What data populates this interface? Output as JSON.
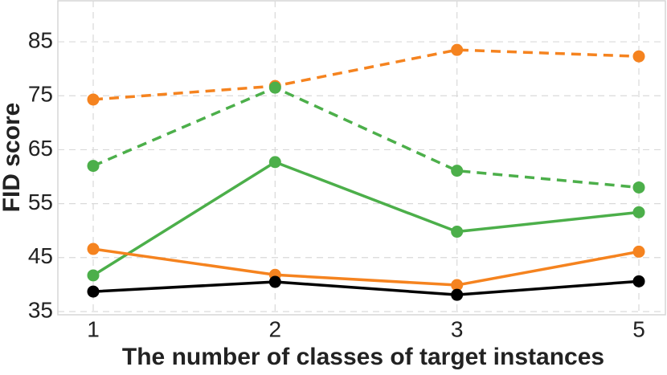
{
  "chart_data": {
    "type": "line",
    "x_label": "The number of classes of target instances",
    "y_label": "FID score",
    "categories": [
      "1",
      "2",
      "3",
      "5"
    ],
    "series": [
      {
        "color": "#f5831f",
        "dashed": true,
        "values": [
          74.3,
          76.8,
          83.5,
          82.3
        ]
      },
      {
        "color": "#4caf4a",
        "dashed": true,
        "values": [
          62.0,
          76.5,
          61.1,
          58.0
        ]
      },
      {
        "color": "#4caf4a",
        "dashed": false,
        "values": [
          41.7,
          62.7,
          49.8,
          53.4
        ]
      },
      {
        "color": "#f5831f",
        "dashed": false,
        "values": [
          46.6,
          41.8,
          39.9,
          46.1
        ]
      },
      {
        "color": "#000000",
        "dashed": false,
        "values": [
          38.7,
          40.5,
          38.1,
          40.6
        ]
      }
    ],
    "ylim": [
      34.4,
      92.6
    ],
    "yticks": [
      35,
      45,
      55,
      65,
      75,
      85
    ],
    "grid": true
  }
}
